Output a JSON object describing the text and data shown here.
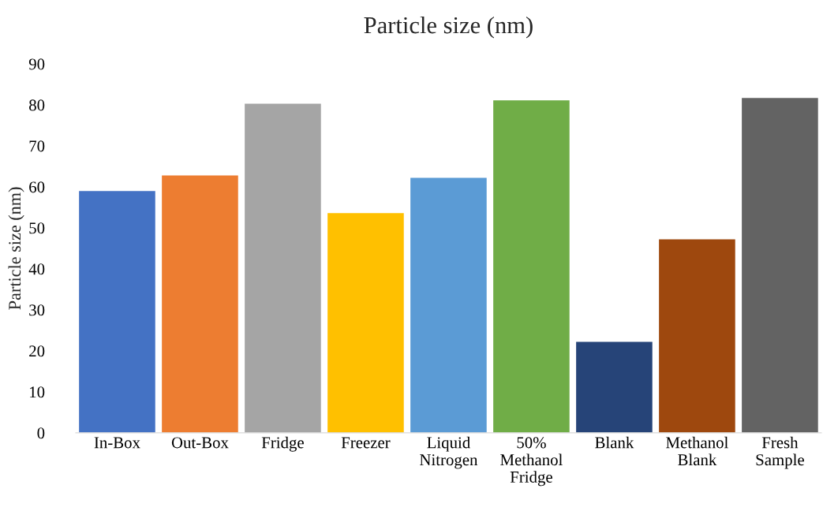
{
  "chart_data": {
    "type": "bar",
    "title": "Particle size (nm)",
    "ylabel": "Particle size (nm)",
    "categories": [
      "In-Box",
      "Out-Box",
      "Fridge",
      "Freezer",
      "Liquid Nitrogen",
      "50% Methanol Fridge",
      "Blank",
      "Methanol Blank",
      "Fresh Sample"
    ],
    "values": [
      59,
      62.8,
      80.3,
      53.6,
      62.2,
      81.1,
      22.2,
      47.2,
      81.7
    ],
    "colors": [
      "#4472c4",
      "#ed7d31",
      "#a5a5a5",
      "#ffc000",
      "#5b9bd5",
      "#70ad47",
      "#264478",
      "#9e480e",
      "#636363"
    ],
    "ylim": [
      0,
      90
    ],
    "yticks": [
      0,
      10,
      20,
      30,
      40,
      50,
      60,
      70,
      80,
      90
    ],
    "grid": false
  }
}
